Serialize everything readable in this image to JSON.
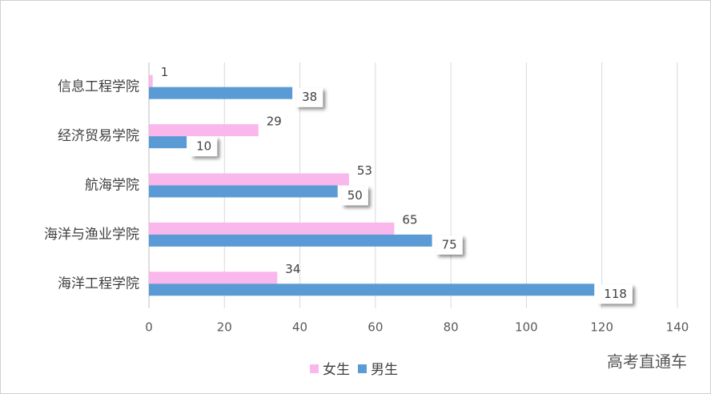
{
  "chart_data": {
    "type": "hbar",
    "categories": [
      "信息工程学院",
      "经济贸易学院",
      "航海学院",
      "海洋与渔业学院",
      "海洋工程学院"
    ],
    "series": [
      {
        "name": "女生",
        "color": "#f9b7eb",
        "values": [
          1,
          29,
          53,
          65,
          34
        ]
      },
      {
        "name": "男生",
        "color": "#5b9bd5",
        "values": [
          38,
          10,
          50,
          75,
          118
        ]
      }
    ],
    "xlim": [
      0,
      140
    ],
    "xticks": [
      0,
      20,
      40,
      60,
      80,
      100,
      120,
      140
    ],
    "grid": true,
    "legend": "bottom",
    "annotation": "高考直通车"
  }
}
